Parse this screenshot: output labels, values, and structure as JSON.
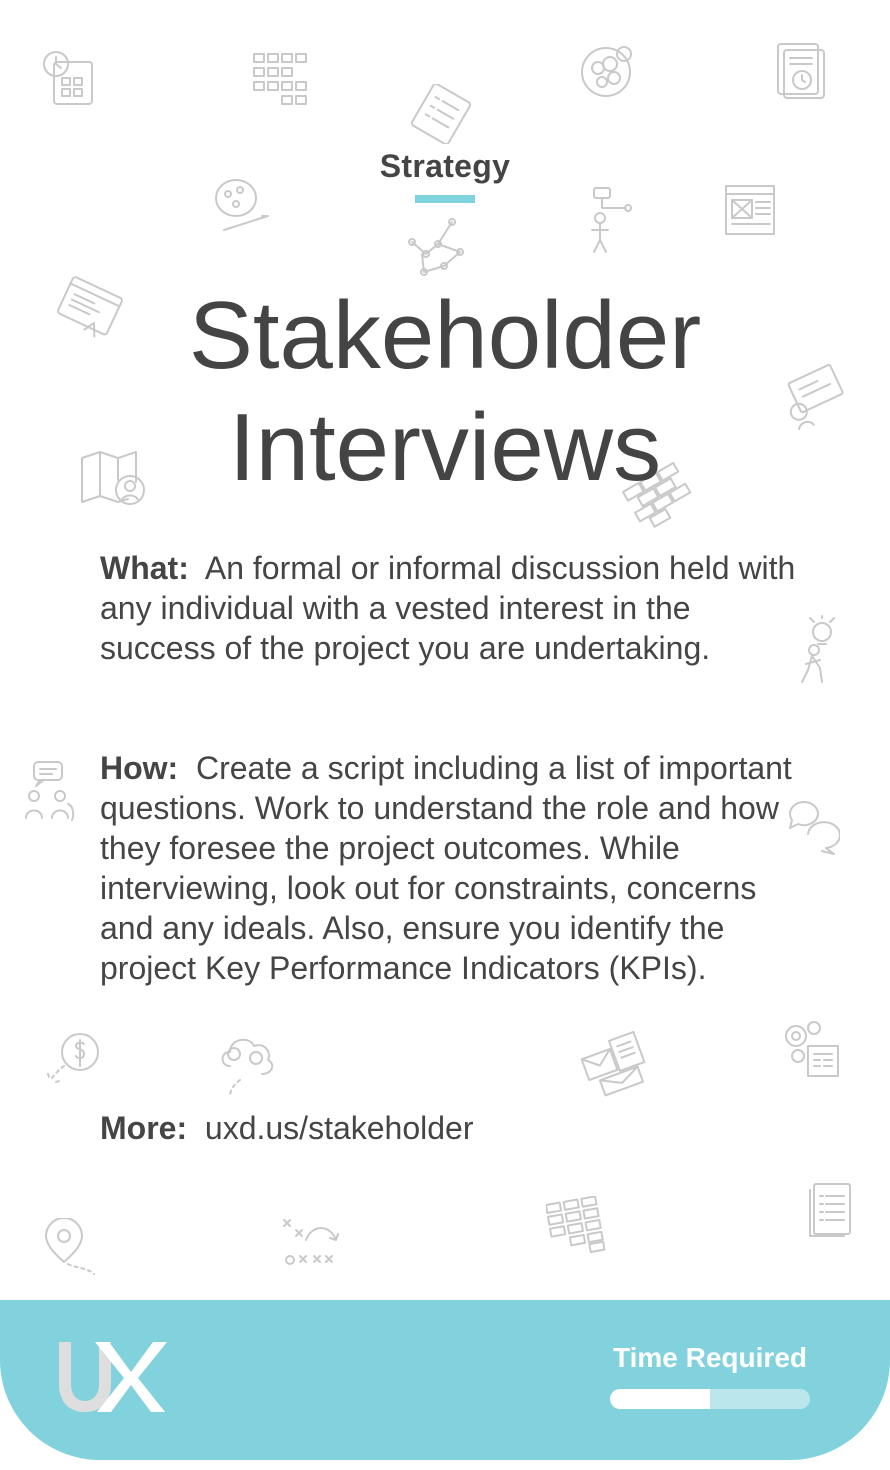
{
  "card": {
    "category": "Strategy",
    "title_line1": "Stakeholder",
    "title_line2": "Interviews",
    "what": {
      "label": "What:",
      "text": "An formal or informal discussion held with any individual with a vested interest in the success of the project you are undertaking."
    },
    "how": {
      "label": "How:",
      "text": "Create a script including a list of important questions. Work to understand the role and how they foresee the project outcomes. While interviewing, look out for constraints, concerns and any ideals. Also, ensure you identify the project Key Performance Indicators (KPIs)."
    },
    "more": {
      "label": "More:",
      "link": "uxd.us/stakeholder"
    }
  },
  "footer": {
    "logo_text": "UX",
    "time_label": "Time Required",
    "time_required_fraction": 0.5
  },
  "colors": {
    "accent": "#82d2dd",
    "text": "#454545",
    "icon": "#c9c9c9"
  },
  "background_icons": [
    "calendar-icon",
    "grid-icon",
    "brain-icon",
    "document-history-icon",
    "checklist-icon",
    "ideas-icon",
    "flowchart-person-icon",
    "wireframe-icon",
    "network-icon",
    "browser-icon",
    "storyboard-icon",
    "map-search-icon",
    "bricks-icon",
    "idea-person-icon",
    "persona-chat-icon",
    "chat-bubbles-icon",
    "money-icon",
    "idea-cloud-icon",
    "email-icon",
    "gears-icon",
    "location-icon",
    "game-plan-icon",
    "blocks-icon",
    "list-document-icon"
  ]
}
